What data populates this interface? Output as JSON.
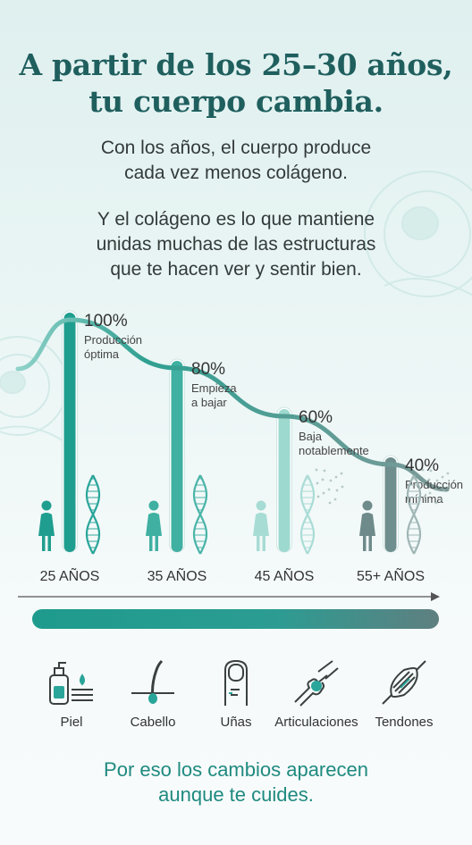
{
  "header": {
    "title_line1": "A partir de los 25–30 años,",
    "title_line2": "tu cuerpo cambia."
  },
  "intro": {
    "p1_line1": "Con los años, el cuerpo produce",
    "p1_line2": "cada vez menos colágeno.",
    "p2_line1": "Y el colágeno es lo que mantiene",
    "p2_line2": "unidas muchas de las estructuras",
    "p2_line3": "que te hacen ver y sentir bien."
  },
  "chart_data": {
    "type": "bar",
    "categories": [
      "25 AÑOS",
      "35 AÑOS",
      "45 AÑOS",
      "55+ AÑOS"
    ],
    "values": [
      100,
      80,
      60,
      40
    ],
    "value_labels": [
      "100%",
      "80%",
      "60%",
      "40%"
    ],
    "annotations": [
      [
        "Producción",
        "óptima"
      ],
      [
        "Empieza",
        "a bajar"
      ],
      [
        "Baja",
        "notablemente"
      ],
      [
        "Producción",
        "mínima"
      ]
    ],
    "trend_curve": true,
    "ylim": [
      0,
      100
    ],
    "colors": [
      "#1f9e8f",
      "#3fb0a2",
      "#9dd9cf",
      "#6f8f8e"
    ]
  },
  "benefits": {
    "items": [
      {
        "label": "Piel",
        "icon": "skin-icon"
      },
      {
        "label": "Cabello",
        "icon": "hair-icon"
      },
      {
        "label": "Uñas",
        "icon": "nail-icon"
      },
      {
        "label": "Articulaciones",
        "icon": "joint-icon"
      },
      {
        "label": "Tendones",
        "icon": "tendon-icon"
      }
    ]
  },
  "footer": {
    "line1": "Por eso los cambios aparecen",
    "line2": "aunque te cuides."
  },
  "colors": {
    "title": "#1f5f5e",
    "accent": "#1f8a80",
    "text": "#333a3a"
  }
}
